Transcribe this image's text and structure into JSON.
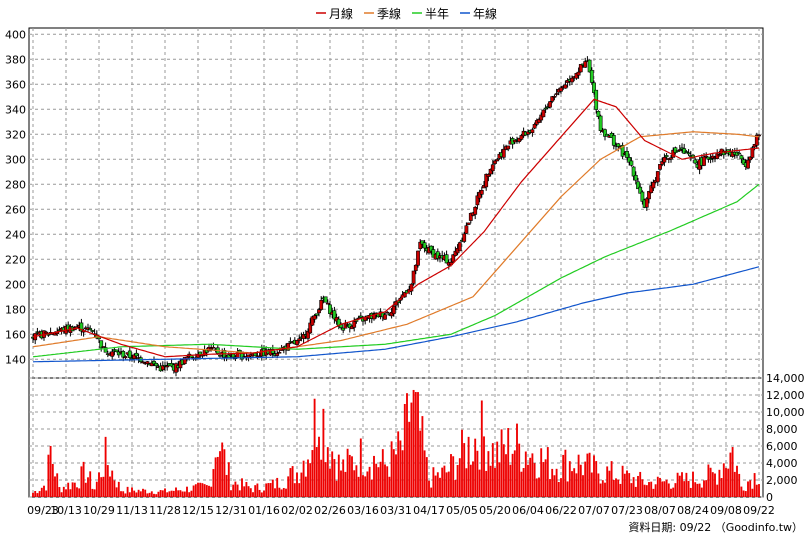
{
  "chart_data": {
    "type": "candlestick",
    "legend": [
      {
        "name": "月線",
        "color": "#cc0000"
      },
      {
        "name": "季線",
        "color": "#e07b2a"
      },
      {
        "name": "半年",
        "color": "#22cc22"
      },
      {
        "name": "年線",
        "color": "#1155cc"
      }
    ],
    "price_axis": {
      "ylim": [
        125,
        405
      ],
      "ticks": [
        140,
        160,
        180,
        200,
        220,
        240,
        260,
        280,
        300,
        320,
        340,
        360,
        380,
        400
      ]
    },
    "volume_axis": {
      "ylim": [
        0,
        14000
      ],
      "ticks": [
        "0",
        "2,000",
        "4,000",
        "6,000",
        "8,000",
        "10,000",
        "12,000",
        "14,000"
      ]
    },
    "x_ticks": [
      "09/23",
      "10/13",
      "10/29",
      "11/13",
      "11/28",
      "12/15",
      "12/31",
      "01/16",
      "02/02",
      "02/26",
      "03/16",
      "03/31",
      "04/17",
      "05/05",
      "05/20",
      "06/04",
      "06/22",
      "07/07",
      "07/23",
      "08/07",
      "08/24",
      "09/08",
      "09/22"
    ],
    "price_close_keypoints": [
      [
        0,
        158
      ],
      [
        12,
        163
      ],
      [
        20,
        166
      ],
      [
        28,
        162
      ],
      [
        32,
        148
      ],
      [
        40,
        144
      ],
      [
        50,
        140
      ],
      [
        58,
        133
      ],
      [
        65,
        134
      ],
      [
        70,
        141
      ],
      [
        80,
        148
      ],
      [
        90,
        142
      ],
      [
        100,
        144
      ],
      [
        110,
        146
      ],
      [
        122,
        155
      ],
      [
        132,
        188
      ],
      [
        140,
        165
      ],
      [
        150,
        172
      ],
      [
        162,
        178
      ],
      [
        172,
        200
      ],
      [
        176,
        232
      ],
      [
        184,
        222
      ],
      [
        190,
        218
      ],
      [
        198,
        250
      ],
      [
        208,
        295
      ],
      [
        218,
        315
      ],
      [
        228,
        325
      ],
      [
        236,
        350
      ],
      [
        246,
        368
      ],
      [
        252,
        378
      ],
      [
        258,
        325
      ],
      [
        266,
        310
      ],
      [
        272,
        295
      ],
      [
        278,
        262
      ],
      [
        286,
        300
      ],
      [
        294,
        308
      ],
      [
        302,
        296
      ],
      [
        312,
        306
      ],
      [
        320,
        304
      ],
      [
        324,
        297
      ],
      [
        330,
        320
      ]
    ],
    "ma_month_keypoints": [
      [
        0,
        158
      ],
      [
        20,
        165
      ],
      [
        40,
        152
      ],
      [
        60,
        142
      ],
      [
        80,
        144
      ],
      [
        100,
        145
      ],
      [
        120,
        150
      ],
      [
        140,
        168
      ],
      [
        160,
        178
      ],
      [
        175,
        200
      ],
      [
        190,
        215
      ],
      [
        205,
        242
      ],
      [
        222,
        282
      ],
      [
        240,
        318
      ],
      [
        255,
        348
      ],
      [
        265,
        342
      ],
      [
        278,
        315
      ],
      [
        295,
        300
      ],
      [
        310,
        305
      ],
      [
        330,
        309
      ]
    ],
    "ma_quarter_keypoints": [
      [
        0,
        150
      ],
      [
        30,
        158
      ],
      [
        60,
        150
      ],
      [
        100,
        145
      ],
      [
        140,
        155
      ],
      [
        170,
        168
      ],
      [
        200,
        190
      ],
      [
        220,
        230
      ],
      [
        240,
        270
      ],
      [
        258,
        300
      ],
      [
        276,
        318
      ],
      [
        300,
        322
      ],
      [
        320,
        320
      ],
      [
        330,
        318
      ]
    ],
    "ma_half_keypoints": [
      [
        0,
        142
      ],
      [
        40,
        150
      ],
      [
        80,
        152
      ],
      [
        120,
        148
      ],
      [
        160,
        152
      ],
      [
        190,
        160
      ],
      [
        210,
        175
      ],
      [
        240,
        205
      ],
      [
        260,
        222
      ],
      [
        290,
        243
      ],
      [
        320,
        266
      ],
      [
        330,
        280
      ]
    ],
    "ma_year_keypoints": [
      [
        0,
        138
      ],
      [
        60,
        140
      ],
      [
        120,
        142
      ],
      [
        160,
        148
      ],
      [
        190,
        158
      ],
      [
        220,
        170
      ],
      [
        250,
        185
      ],
      [
        270,
        193
      ],
      [
        300,
        200
      ],
      [
        330,
        214
      ]
    ],
    "volume_keypoints": [
      [
        0,
        600
      ],
      [
        6,
        1800
      ],
      [
        8,
        6600
      ],
      [
        12,
        1200
      ],
      [
        20,
        2200
      ],
      [
        24,
        3600
      ],
      [
        28,
        1200
      ],
      [
        33,
        5500
      ],
      [
        40,
        1000
      ],
      [
        60,
        800
      ],
      [
        80,
        1500
      ],
      [
        84,
        8500
      ],
      [
        90,
        2200
      ],
      [
        100,
        1200
      ],
      [
        110,
        1800
      ],
      [
        120,
        3500
      ],
      [
        126,
        7000
      ],
      [
        130,
        14000
      ],
      [
        134,
        8000
      ],
      [
        140,
        4000
      ],
      [
        150,
        6000
      ],
      [
        160,
        4500
      ],
      [
        168,
        7000
      ],
      [
        172,
        13500
      ],
      [
        176,
        9000
      ],
      [
        180,
        2500
      ],
      [
        188,
        3500
      ],
      [
        196,
        6500
      ],
      [
        204,
        9000
      ],
      [
        210,
        6000
      ],
      [
        218,
        7500
      ],
      [
        228,
        6000
      ],
      [
        236,
        4500
      ],
      [
        246,
        5000
      ],
      [
        256,
        3800
      ],
      [
        268,
        3000
      ],
      [
        280,
        2000
      ],
      [
        300,
        2500
      ],
      [
        310,
        3200
      ],
      [
        318,
        6600
      ],
      [
        322,
        1500
      ],
      [
        330,
        3500
      ]
    ],
    "source": "資料日期: 09/22 （Goodinfo.tw）"
  }
}
